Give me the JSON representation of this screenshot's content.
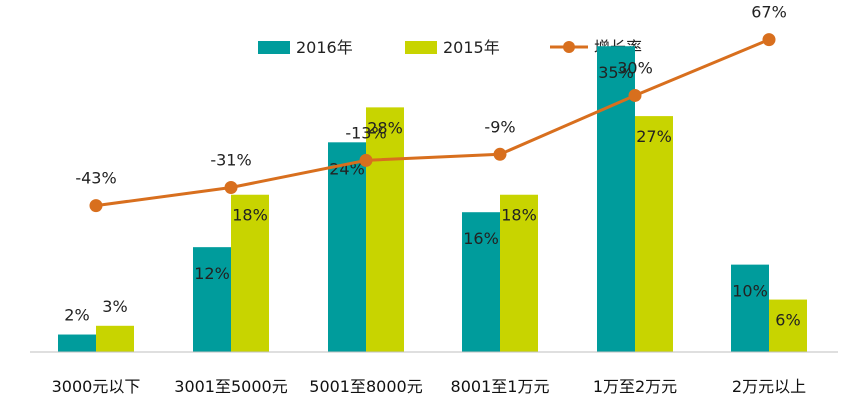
{
  "chart_data": {
    "type": "bar",
    "title": "",
    "xlabel": "",
    "ylabel": "",
    "categories": [
      "3000元以下",
      "3001至5000元",
      "5001至8000元",
      "8001至1万元",
      "1万至2万元",
      "2万元以上"
    ],
    "series": [
      {
        "name": "2016年",
        "type": "bar",
        "color": "#009c9c",
        "values": [
          2,
          12,
          24,
          16,
          35,
          10
        ],
        "labels": [
          "2%",
          "12%",
          "24%",
          "16%",
          "35%",
          "10%"
        ]
      },
      {
        "name": "2015年",
        "type": "bar",
        "color": "#c8d400",
        "values": [
          3,
          18,
          28,
          18,
          27,
          6
        ],
        "labels": [
          "3%",
          "18%",
          "28%",
          "18%",
          "27%",
          "6%"
        ]
      },
      {
        "name": "增长率",
        "type": "line",
        "color": "#d86f1e",
        "values": [
          -43,
          -31,
          -13,
          -9,
          30,
          67
        ],
        "labels": [
          "-43%",
          "-31%",
          "-13%",
          "-9%",
          "30%",
          "67%"
        ]
      }
    ],
    "bar_axis": {
      "ylim": [
        0,
        38
      ],
      "unit": "%"
    },
    "line_axis": {
      "ylim": [
        -140,
        80
      ],
      "unit": "%"
    },
    "legend_position": "top",
    "grid": false
  }
}
